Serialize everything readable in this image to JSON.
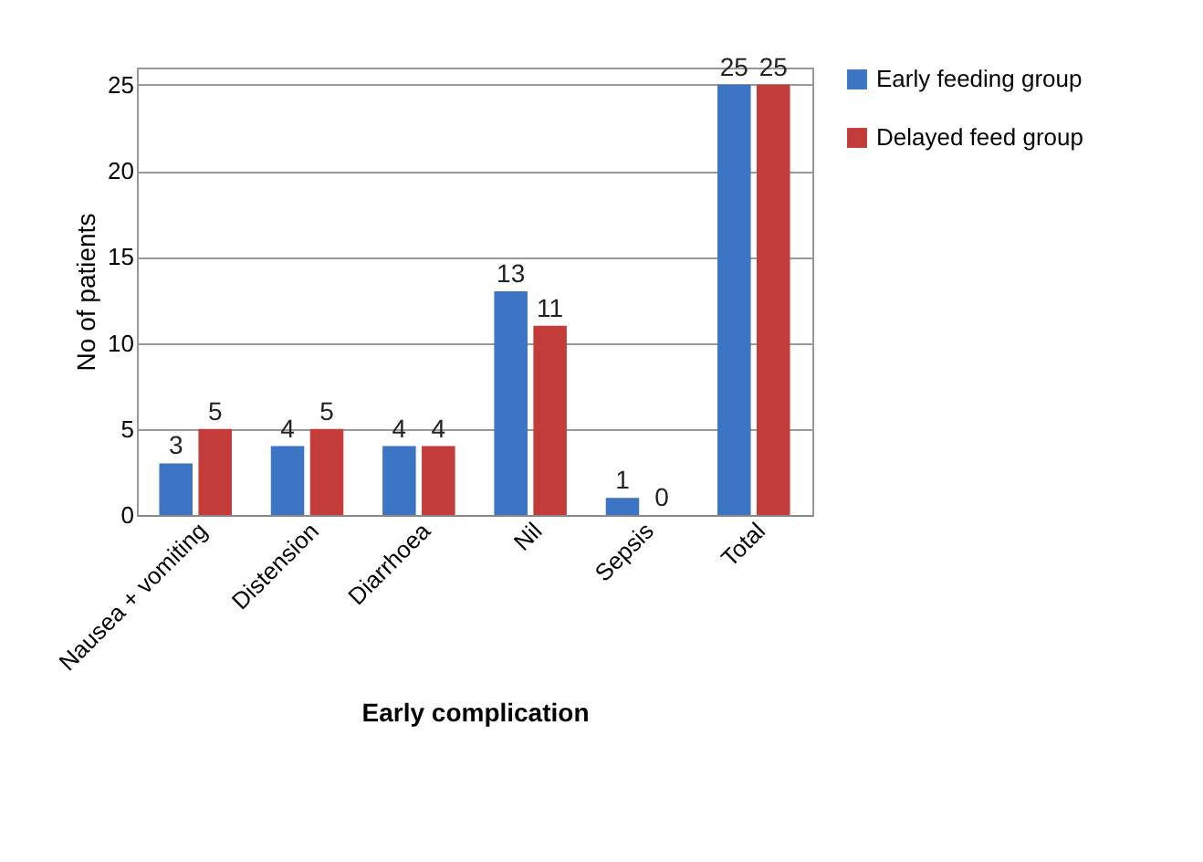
{
  "chart_data": {
    "type": "bar",
    "xlabel": "Early complication",
    "ylabel": "No of patients",
    "categories": [
      "Nausea + vomiting",
      "Distension",
      "Diarrhoea",
      "Nil",
      "Sepsis",
      "Total"
    ],
    "series": [
      {
        "name": "Early feeding group",
        "color": "#3b75c3",
        "values": [
          3,
          4,
          4,
          13,
          1,
          25
        ]
      },
      {
        "name": "Delayed feed group",
        "color": "#c43c3a",
        "values": [
          5,
          5,
          4,
          11,
          0,
          25
        ]
      }
    ],
    "ylim": [
      0,
      26
    ],
    "yticks": [
      0,
      5,
      10,
      15,
      20,
      25
    ],
    "grid": "y",
    "legend": "right",
    "data_labels": true
  }
}
